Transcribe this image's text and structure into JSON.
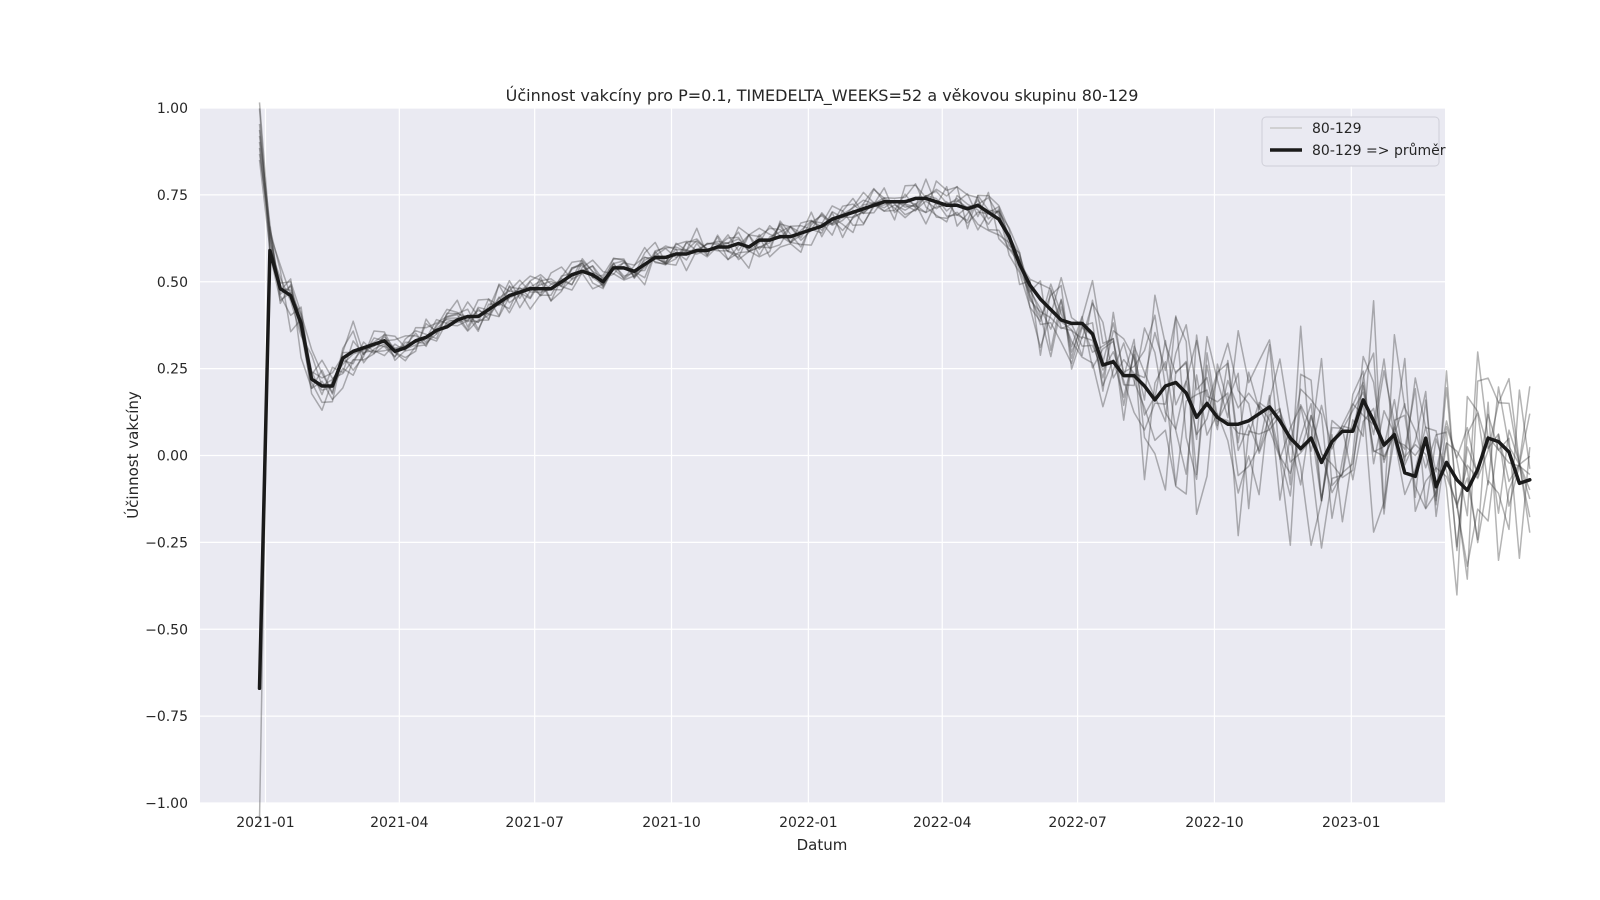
{
  "chart_data": {
    "type": "line",
    "title": "Účinnost vakcíny pro P=0.1, TIMEDELTA_WEEKS=52 a věkovou skupinu 80-129",
    "xlabel": "Datum",
    "ylabel": "Účinnost vakcíny",
    "xlim": [
      "2020-11-18",
      "2023-03-05"
    ],
    "ylim": [
      -1.0,
      1.0
    ],
    "grid": true,
    "legend_position": "top-right",
    "x_tick_labels": [
      "2021-01",
      "2021-04",
      "2021-07",
      "2021-10",
      "2022-01",
      "2022-04",
      "2022-07",
      "2022-10",
      "2023-01"
    ],
    "y_tick_labels": [
      "1.00",
      "0.75",
      "0.50",
      "0.25",
      "0.00",
      "−0.25",
      "−0.50",
      "−0.75",
      "−1.00"
    ],
    "colors": {
      "background": "#eaeaf2",
      "grid": "#ffffff",
      "mean_line": "#1a1a1a",
      "runs": "#3a3a3a"
    },
    "x_start_date": "2020-12-28",
    "x_step_days": 7,
    "series": [
      {
        "name": "80-129 => průměr",
        "role": "mean",
        "values": [
          -0.67,
          0.59,
          0.48,
          0.46,
          0.38,
          0.22,
          0.2,
          0.2,
          0.28,
          0.3,
          0.31,
          0.32,
          0.33,
          0.3,
          0.31,
          0.33,
          0.34,
          0.36,
          0.37,
          0.39,
          0.4,
          0.4,
          0.42,
          0.44,
          0.46,
          0.47,
          0.48,
          0.48,
          0.48,
          0.5,
          0.52,
          0.53,
          0.52,
          0.5,
          0.54,
          0.54,
          0.53,
          0.55,
          0.57,
          0.57,
          0.58,
          0.58,
          0.59,
          0.59,
          0.6,
          0.6,
          0.61,
          0.6,
          0.62,
          0.62,
          0.63,
          0.63,
          0.64,
          0.65,
          0.66,
          0.68,
          0.69,
          0.7,
          0.71,
          0.72,
          0.73,
          0.73,
          0.73,
          0.74,
          0.74,
          0.73,
          0.72,
          0.72,
          0.71,
          0.72,
          0.7,
          0.68,
          0.63,
          0.55,
          0.49,
          0.45,
          0.42,
          0.39,
          0.38,
          0.38,
          0.35,
          0.26,
          0.27,
          0.23,
          0.23,
          0.2,
          0.16,
          0.2,
          0.21,
          0.18,
          0.11,
          0.15,
          0.11,
          0.09,
          0.09,
          0.1,
          0.12,
          0.14,
          0.1,
          0.05,
          0.02,
          0.05,
          -0.02,
          0.04,
          0.07,
          0.07,
          0.16,
          0.1,
          0.03,
          0.06,
          -0.05,
          -0.06,
          0.05,
          -0.09,
          -0.02,
          -0.07,
          -0.1,
          -0.04,
          0.05,
          0.04,
          0.01,
          -0.08,
          -0.07
        ]
      },
      {
        "name": "80-129",
        "role": "run",
        "seed": 1
      },
      {
        "name": "80-129",
        "role": "run",
        "seed": 2
      },
      {
        "name": "80-129",
        "role": "run",
        "seed": 3
      },
      {
        "name": "80-129",
        "role": "run",
        "seed": 4
      },
      {
        "name": "80-129",
        "role": "run",
        "seed": 5
      },
      {
        "name": "80-129",
        "role": "run",
        "seed": 6
      },
      {
        "name": "80-129",
        "role": "run",
        "seed": 7
      },
      {
        "name": "80-129",
        "role": "run",
        "seed": 8
      },
      {
        "name": "80-129",
        "role": "run",
        "seed": 9
      },
      {
        "name": "80-129",
        "role": "run",
        "seed": 10
      }
    ]
  },
  "legend": {
    "items": [
      {
        "label": "80-129",
        "style": "run"
      },
      {
        "label": "80-129 => průměr",
        "style": "mean"
      }
    ]
  }
}
